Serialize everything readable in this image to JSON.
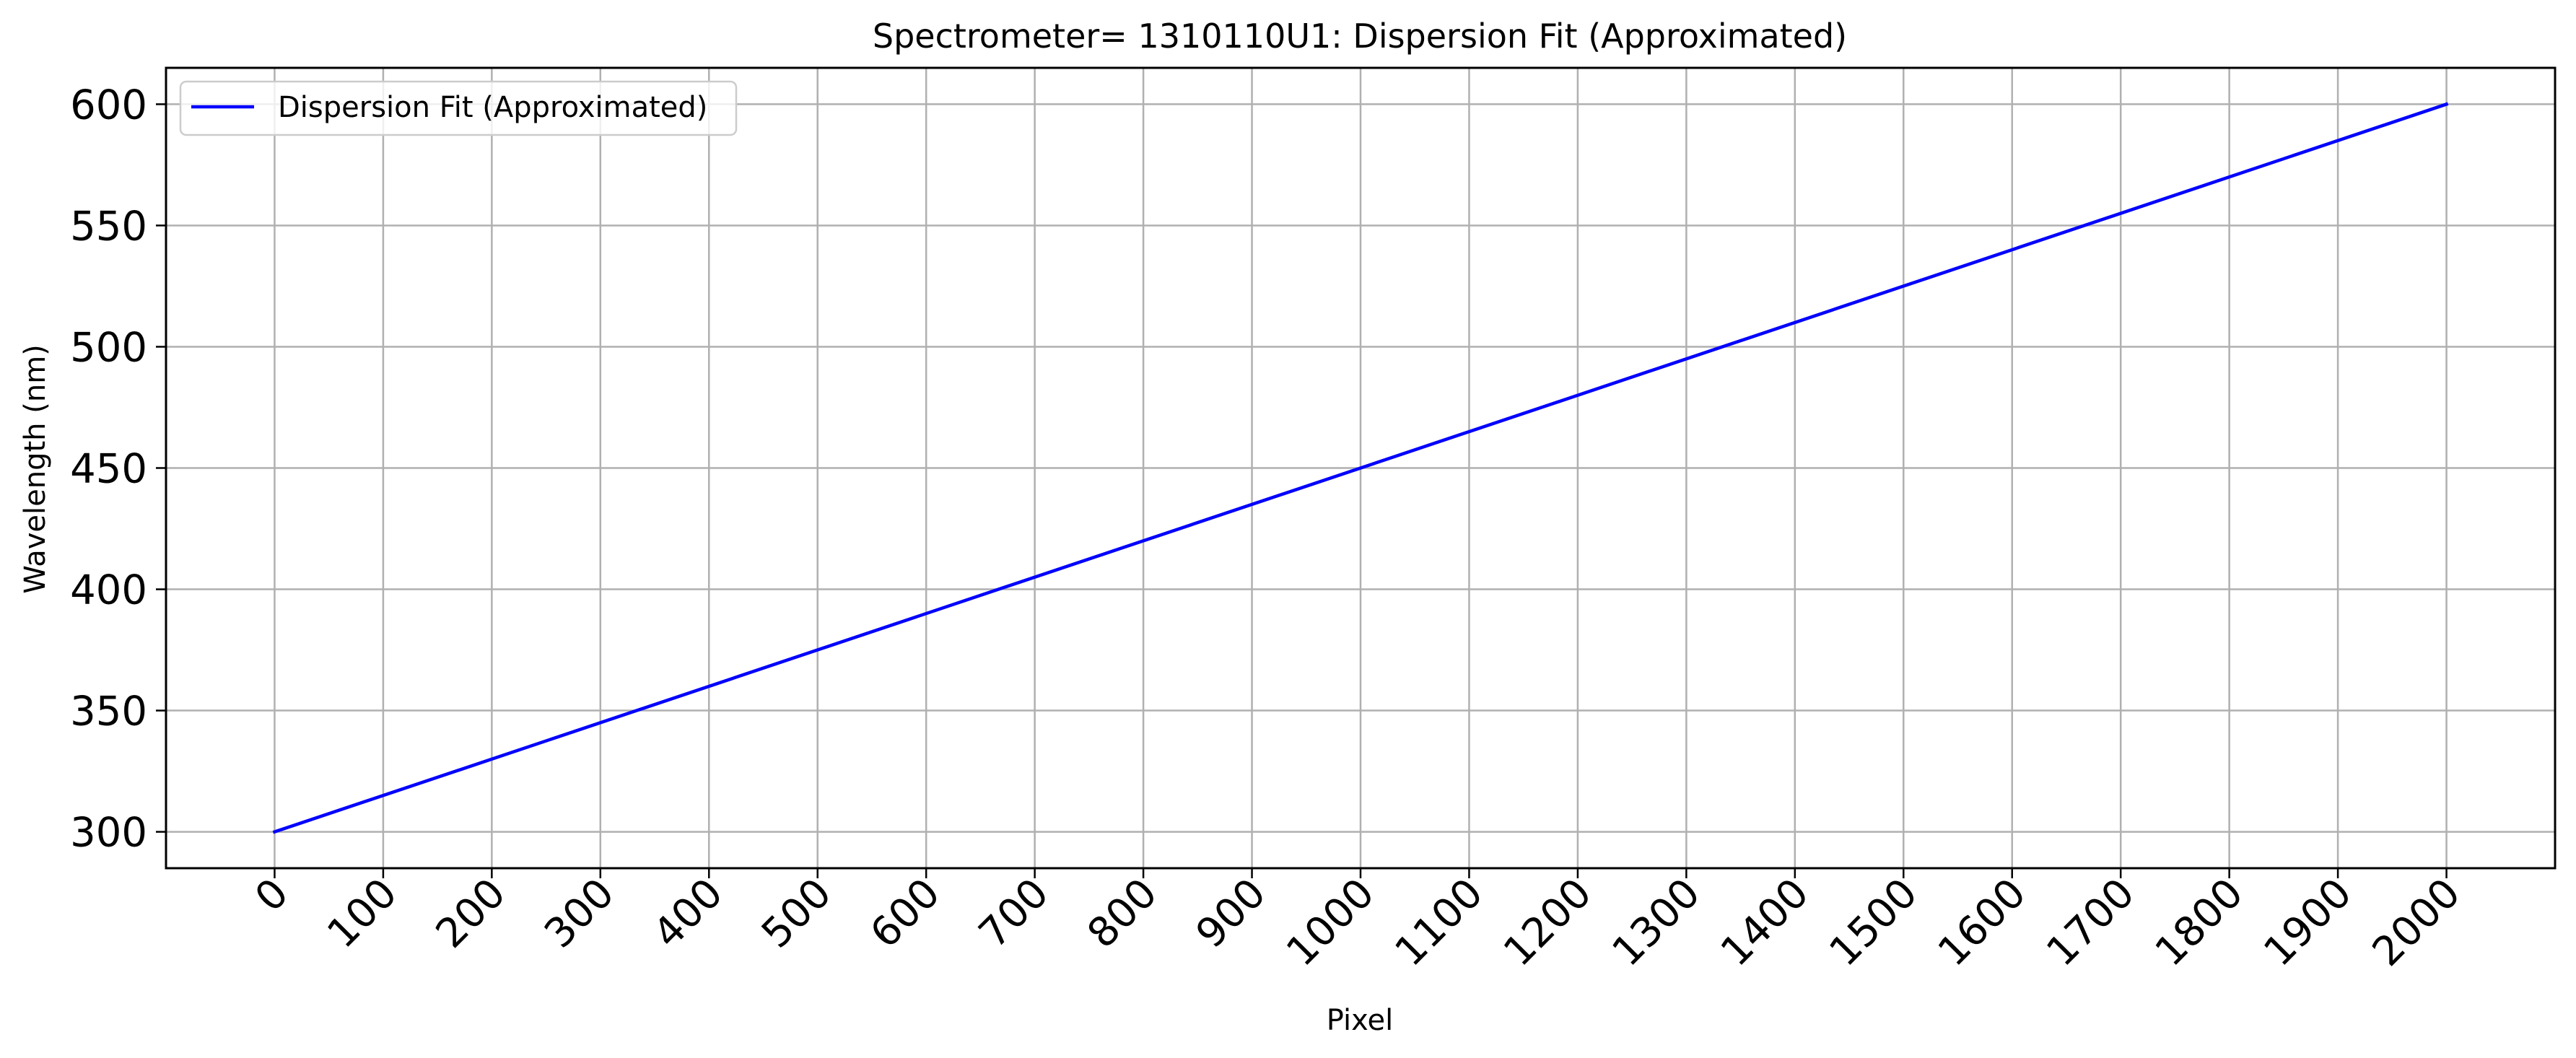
{
  "chart_data": {
    "type": "line",
    "title": "Spectrometer= 1310110U1: Dispersion Fit (Approximated)",
    "xlabel": "Pixel",
    "ylabel": "Wavelength (nm)",
    "xlim": [
      -100,
      2100
    ],
    "ylim": [
      285,
      615
    ],
    "xticks": [
      0,
      100,
      200,
      300,
      400,
      500,
      600,
      700,
      800,
      900,
      1000,
      1100,
      1200,
      1300,
      1400,
      1500,
      1600,
      1700,
      1800,
      1900,
      2000
    ],
    "yticks": [
      300,
      350,
      400,
      450,
      500,
      550,
      600
    ],
    "xtick_rotation_deg": 45,
    "grid": true,
    "legend_position": "top-left",
    "series": [
      {
        "name": "Dispersion Fit (Approximated)",
        "color": "#0000ff",
        "x": [
          0,
          2000
        ],
        "y": [
          300,
          600
        ]
      }
    ]
  }
}
